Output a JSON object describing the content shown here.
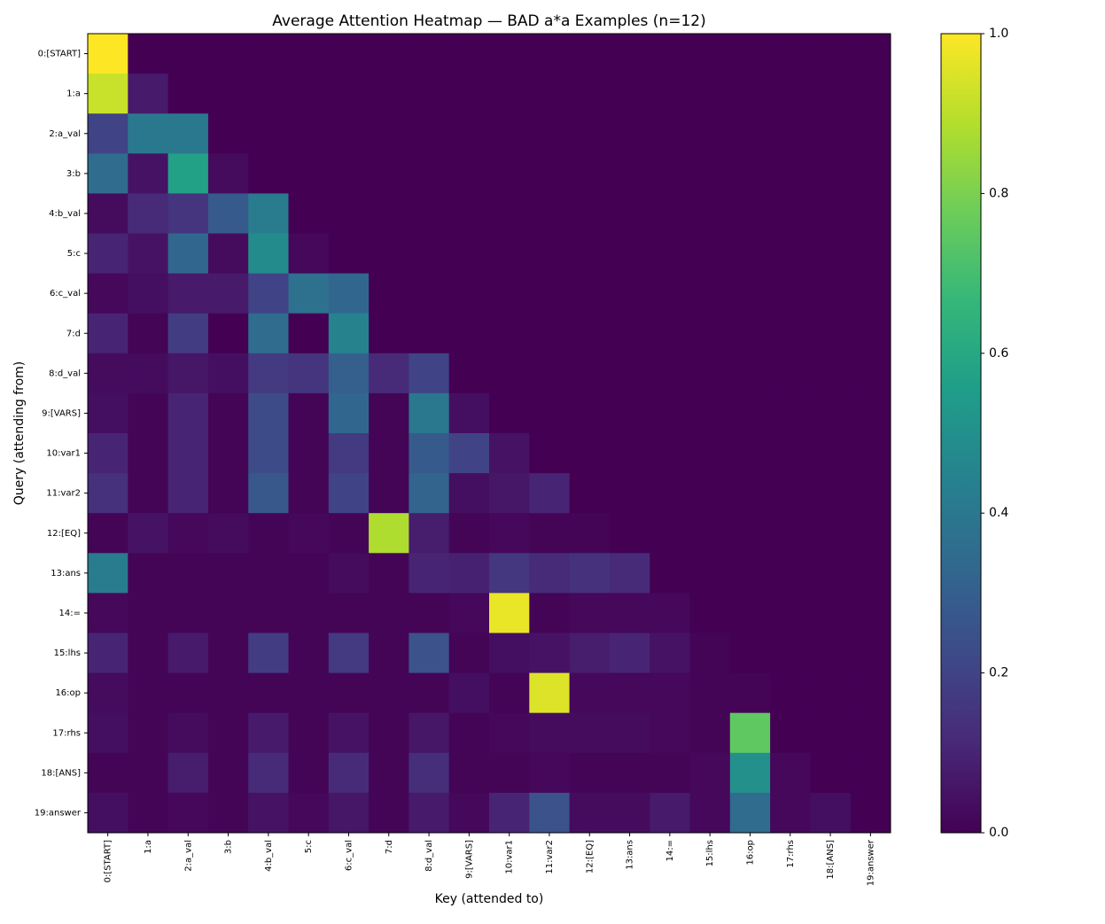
{
  "chart_data": {
    "type": "heatmap",
    "title": "Average Attention Heatmap — BAD a*a Examples (n=12)",
    "x_label": "Key (attended to)",
    "y_label": "Query (attending from)",
    "categories": [
      "0:[START]",
      "1:a",
      "2:a_val",
      "3:b",
      "4:b_val",
      "5:c",
      "6:c_val",
      "7:d",
      "8:d_val",
      "9:[VARS]",
      "10:var1",
      "11:var2",
      "12:[EQ]",
      "13:ans",
      "14:=",
      "15:lhs",
      "16:op",
      "17:rhs",
      "18:[ANS]",
      "19:answer"
    ],
    "colormap": "viridis",
    "clim": [
      0,
      1
    ],
    "cticks": [
      {
        "value": 0,
        "label": "0.0"
      },
      {
        "value": 0.2,
        "label": "0.2"
      },
      {
        "value": 0.4,
        "label": "0.4"
      },
      {
        "value": 0.6,
        "label": "0.6"
      },
      {
        "value": 0.8,
        "label": "0.8"
      },
      {
        "value": 1,
        "label": "1.0"
      }
    ],
    "values": [
      [
        1.0,
        0,
        0,
        0,
        0,
        0,
        0,
        0,
        0,
        0,
        0,
        0,
        0,
        0,
        0,
        0,
        0,
        0,
        0,
        0
      ],
      [
        0.92,
        0.07,
        0,
        0,
        0,
        0,
        0,
        0,
        0,
        0,
        0,
        0,
        0,
        0,
        0,
        0,
        0,
        0,
        0,
        0
      ],
      [
        0.2,
        0.4,
        0.4,
        0,
        0,
        0,
        0,
        0,
        0,
        0,
        0,
        0,
        0,
        0,
        0,
        0,
        0,
        0,
        0,
        0
      ],
      [
        0.35,
        0.05,
        0.57,
        0.03,
        0,
        0,
        0,
        0,
        0,
        0,
        0,
        0,
        0,
        0,
        0,
        0,
        0,
        0,
        0,
        0
      ],
      [
        0.03,
        0.12,
        0.15,
        0.28,
        0.42,
        0,
        0,
        0,
        0,
        0,
        0,
        0,
        0,
        0,
        0,
        0,
        0,
        0,
        0,
        0
      ],
      [
        0.1,
        0.05,
        0.33,
        0.03,
        0.48,
        0.02,
        0,
        0,
        0,
        0,
        0,
        0,
        0,
        0,
        0,
        0,
        0,
        0,
        0,
        0
      ],
      [
        0.02,
        0.04,
        0.07,
        0.07,
        0.2,
        0.37,
        0.33,
        0,
        0,
        0,
        0,
        0,
        0,
        0,
        0,
        0,
        0,
        0,
        0,
        0
      ],
      [
        0.1,
        0.01,
        0.18,
        0.0,
        0.35,
        0.0,
        0.45,
        0,
        0,
        0,
        0,
        0,
        0,
        0,
        0,
        0,
        0,
        0,
        0,
        0
      ],
      [
        0.03,
        0.03,
        0.06,
        0.04,
        0.17,
        0.15,
        0.3,
        0.12,
        0.2,
        0,
        0,
        0,
        0,
        0,
        0,
        0,
        0,
        0,
        0,
        0
      ],
      [
        0.04,
        0.01,
        0.1,
        0.01,
        0.23,
        0.01,
        0.33,
        0.01,
        0.4,
        0.04,
        0,
        0,
        0,
        0,
        0,
        0,
        0,
        0,
        0,
        0
      ],
      [
        0.1,
        0.01,
        0.1,
        0.01,
        0.23,
        0.01,
        0.17,
        0.01,
        0.28,
        0.2,
        0.05,
        0,
        0,
        0,
        0,
        0,
        0,
        0,
        0,
        0
      ],
      [
        0.14,
        0.01,
        0.1,
        0.01,
        0.27,
        0.01,
        0.2,
        0.01,
        0.32,
        0.04,
        0.06,
        0.1,
        0,
        0,
        0,
        0,
        0,
        0,
        0,
        0
      ],
      [
        0.01,
        0.05,
        0.02,
        0.03,
        0.01,
        0.02,
        0.01,
        0.88,
        0.08,
        0.01,
        0.02,
        0.01,
        0.01,
        0,
        0,
        0,
        0,
        0,
        0,
        0
      ],
      [
        0.42,
        0.01,
        0.01,
        0.01,
        0.01,
        0.01,
        0.03,
        0.01,
        0.1,
        0.09,
        0.16,
        0.12,
        0.14,
        0.12,
        0,
        0,
        0,
        0,
        0,
        0
      ],
      [
        0.02,
        0.01,
        0.01,
        0.01,
        0.01,
        0.01,
        0.01,
        0.01,
        0.01,
        0.02,
        0.97,
        0.01,
        0.02,
        0.02,
        0.02,
        0,
        0,
        0,
        0,
        0
      ],
      [
        0.1,
        0.01,
        0.07,
        0.01,
        0.18,
        0.01,
        0.17,
        0.01,
        0.25,
        0.01,
        0.04,
        0.05,
        0.08,
        0.1,
        0.05,
        0.01,
        0,
        0,
        0,
        0
      ],
      [
        0.03,
        0.01,
        0.01,
        0.01,
        0.01,
        0.01,
        0.01,
        0.01,
        0.01,
        0.04,
        0.01,
        0.95,
        0.02,
        0.02,
        0.02,
        0.01,
        0.01,
        0,
        0,
        0
      ],
      [
        0.04,
        0.01,
        0.03,
        0.01,
        0.07,
        0.01,
        0.05,
        0.01,
        0.06,
        0.01,
        0.02,
        0.03,
        0.03,
        0.03,
        0.02,
        0.01,
        0.75,
        0,
        0,
        0
      ],
      [
        0.01,
        0.01,
        0.08,
        0.01,
        0.12,
        0.01,
        0.12,
        0.01,
        0.13,
        0.01,
        0.01,
        0.02,
        0.01,
        0.01,
        0.01,
        0.02,
        0.5,
        0.02,
        0,
        0
      ],
      [
        0.04,
        0.01,
        0.02,
        0.01,
        0.05,
        0.02,
        0.06,
        0.01,
        0.07,
        0.02,
        0.1,
        0.25,
        0.03,
        0.03,
        0.07,
        0.02,
        0.35,
        0.02,
        0.04,
        0.0
      ]
    ]
  }
}
